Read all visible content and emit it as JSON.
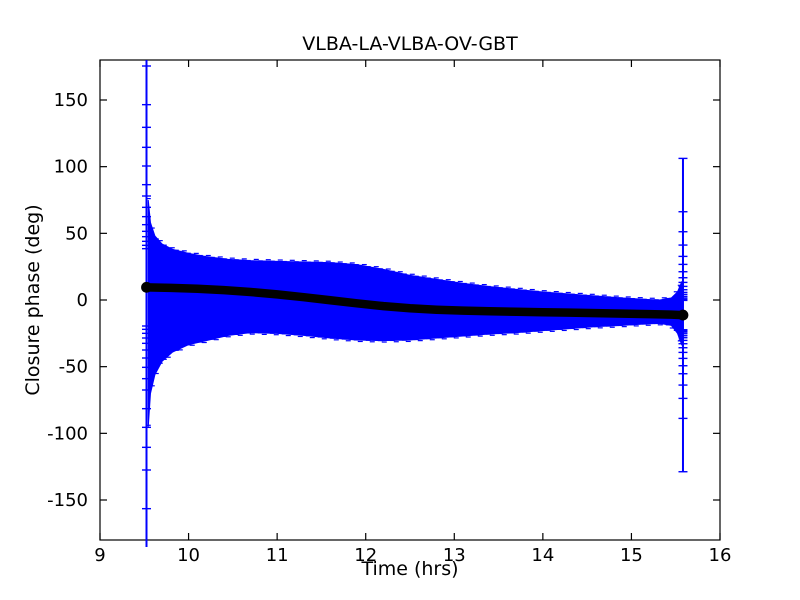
{
  "figure": {
    "title": "VLBA-LA-VLBA-OV-GBT",
    "xlabel": "Time (hrs)",
    "ylabel": "Closure phase (deg)"
  },
  "chart_data": {
    "type": "errorbar-line",
    "title": "VLBA-LA-VLBA-OV-GBT",
    "xlabel": "Time (hrs)",
    "ylabel": "Closure phase (deg)",
    "xlim": [
      9,
      16
    ],
    "ylim": [
      -180,
      180
    ],
    "xticks": [
      9,
      10,
      11,
      12,
      13,
      14,
      15,
      16
    ],
    "yticks": [
      -150,
      -100,
      -50,
      0,
      50,
      100,
      150
    ],
    "grid": false,
    "legend": null,
    "colors": {
      "errorbar": "#0000ff",
      "line": "#000000",
      "axes": "#000000",
      "background": "#ffffff"
    },
    "center_line": {
      "t": [
        9.525,
        9.8,
        10.1,
        10.4,
        10.7,
        11.0,
        11.3,
        11.6,
        11.9,
        12.2,
        12.5,
        12.8,
        13.1,
        13.4,
        13.7,
        14.0,
        14.3,
        14.6,
        14.9,
        15.2,
        15.45,
        15.582
      ],
      "phase": [
        9.5,
        9.1,
        8.4,
        7.4,
        6.0,
        4.2,
        2.1,
        -0.2,
        -2.5,
        -4.6,
        -6.2,
        -7.3,
        -8.0,
        -8.4,
        -8.8,
        -9.2,
        -9.5,
        -9.8,
        -10.2,
        -10.6,
        -11.0,
        -11.3
      ]
    },
    "error_envelope": {
      "t": [
        9.545,
        9.57,
        9.62,
        9.7,
        9.82,
        10.0,
        10.2,
        10.45,
        10.7,
        11.0,
        11.3,
        11.6,
        11.9,
        12.2,
        12.5,
        12.8,
        13.1,
        13.4,
        13.7,
        14.0,
        14.3,
        14.6,
        14.9,
        15.15,
        15.32,
        15.45,
        15.52,
        15.57
      ],
      "upper": [
        75,
        58,
        48,
        42,
        38,
        35,
        32.5,
        30.5,
        29.5,
        29,
        28.5,
        28,
        26.5,
        23,
        18.5,
        15.5,
        12.5,
        10,
        8,
        6,
        4.5,
        3,
        1.5,
        0.5,
        0,
        1.5,
        6,
        14
      ],
      "lower": [
        -95,
        -70,
        -56,
        -46,
        -39,
        -33.5,
        -30.5,
        -26.5,
        -24.5,
        -25,
        -26.5,
        -28.5,
        -30,
        -30.5,
        -30,
        -28.5,
        -27,
        -25.5,
        -24.5,
        -23,
        -21.5,
        -20,
        -19,
        -18,
        -17.5,
        -19,
        -25,
        -34
      ]
    },
    "edge_errorbars": {
      "left": {
        "t": 9.525,
        "center": 9.5,
        "errors": [
          205,
          166,
          137,
          120,
          105,
          91,
          77,
          68.5,
          60,
          53,
          47,
          42,
          38,
          34.5,
          31.5,
          29
        ]
      },
      "right": {
        "t": 15.582,
        "center": -11.3,
        "errors": [
          117.5,
          77.5,
          62.5,
          52.5,
          44,
          38,
          32.5,
          28,
          24.5,
          21.5,
          19,
          17,
          15.5,
          14,
          12.8,
          11.8,
          11
        ]
      }
    }
  }
}
